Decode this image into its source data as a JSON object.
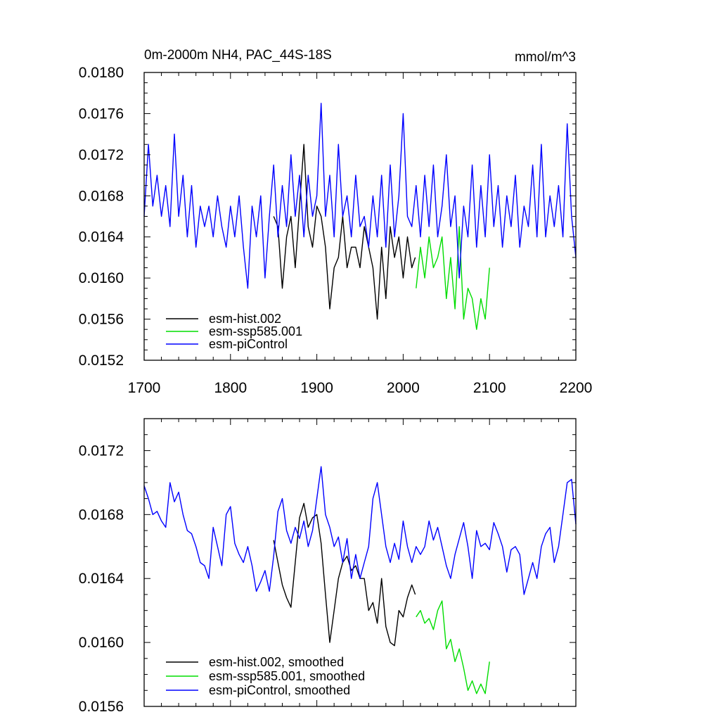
{
  "chart_data": [
    {
      "type": "line",
      "title": "0m-2000m NH4, PAC_44S-18S",
      "units": "mmol/m^3",
      "xlim": [
        1700,
        2200
      ],
      "ylim": [
        0.0152,
        0.018
      ],
      "xticks": [
        "1700",
        "1800",
        "1900",
        "2000",
        "2100",
        "2200"
      ],
      "yticks": [
        "0.0152",
        "0.0156",
        "0.0160",
        "0.0164",
        "0.0168",
        "0.0172",
        "0.0176",
        "0.0180"
      ],
      "legend_position": "bottom-left",
      "series": [
        {
          "name": "esm-hist.002",
          "color": "#000000",
          "x": [
            1850,
            1855,
            1860,
            1865,
            1870,
            1875,
            1880,
            1885,
            1890,
            1895,
            1900,
            1905,
            1910,
            1915,
            1920,
            1925,
            1930,
            1935,
            1940,
            1945,
            1950,
            1955,
            1960,
            1965,
            1970,
            1975,
            1980,
            1985,
            1990,
            1995,
            2000,
            2005,
            2010,
            2014
          ],
          "y": [
            0.0166,
            0.0165,
            0.0159,
            0.0164,
            0.0166,
            0.0161,
            0.0167,
            0.0173,
            0.0165,
            0.0163,
            0.0167,
            0.0166,
            0.0163,
            0.0157,
            0.0161,
            0.0162,
            0.0166,
            0.0161,
            0.0163,
            0.0163,
            0.0161,
            0.0165,
            0.0163,
            0.0161,
            0.0156,
            0.0163,
            0.0158,
            0.0165,
            0.0162,
            0.0164,
            0.016,
            0.0164,
            0.0161,
            0.0162
          ]
        },
        {
          "name": "esm-ssp585.001",
          "color": "#00dd00",
          "x": [
            2015,
            2020,
            2025,
            2030,
            2035,
            2040,
            2045,
            2050,
            2055,
            2060,
            2065,
            2070,
            2075,
            2080,
            2085,
            2090,
            2095,
            2100
          ],
          "y": [
            0.0159,
            0.0163,
            0.016,
            0.0164,
            0.0161,
            0.0162,
            0.0164,
            0.0158,
            0.0162,
            0.0157,
            0.0165,
            0.0156,
            0.0159,
            0.0158,
            0.0155,
            0.0158,
            0.0156,
            0.0161
          ]
        },
        {
          "name": "esm-piControl",
          "color": "#0000ff",
          "x": [
            1700,
            1705,
            1710,
            1715,
            1720,
            1725,
            1730,
            1735,
            1740,
            1745,
            1750,
            1755,
            1760,
            1765,
            1770,
            1775,
            1780,
            1785,
            1790,
            1795,
            1800,
            1805,
            1810,
            1815,
            1820,
            1825,
            1830,
            1835,
            1840,
            1845,
            1850,
            1855,
            1860,
            1865,
            1870,
            1875,
            1880,
            1885,
            1890,
            1895,
            1900,
            1905,
            1910,
            1915,
            1920,
            1925,
            1930,
            1935,
            1940,
            1945,
            1950,
            1955,
            1960,
            1965,
            1970,
            1975,
            1980,
            1985,
            1990,
            1995,
            2000,
            2005,
            2010,
            2015,
            2020,
            2025,
            2030,
            2035,
            2040,
            2045,
            2050,
            2055,
            2060,
            2065,
            2070,
            2075,
            2080,
            2085,
            2090,
            2095,
            2100,
            2105,
            2110,
            2115,
            2120,
            2125,
            2130,
            2135,
            2140,
            2145,
            2150,
            2155,
            2160,
            2165,
            2170,
            2175,
            2180,
            2185,
            2190,
            2195,
            2200
          ],
          "y": [
            0.0166,
            0.0173,
            0.0167,
            0.017,
            0.0166,
            0.0169,
            0.0165,
            0.0174,
            0.0166,
            0.017,
            0.0164,
            0.0169,
            0.0163,
            0.0167,
            0.0165,
            0.0167,
            0.0164,
            0.0168,
            0.0165,
            0.0163,
            0.0167,
            0.0164,
            0.0168,
            0.0163,
            0.0159,
            0.0167,
            0.0164,
            0.0168,
            0.016,
            0.0166,
            0.0171,
            0.0164,
            0.0169,
            0.0165,
            0.0172,
            0.0166,
            0.017,
            0.0164,
            0.017,
            0.0166,
            0.0168,
            0.0177,
            0.0166,
            0.017,
            0.0164,
            0.0173,
            0.0166,
            0.0168,
            0.0164,
            0.017,
            0.0165,
            0.0166,
            0.0163,
            0.0168,
            0.0164,
            0.017,
            0.0163,
            0.0171,
            0.0164,
            0.0168,
            0.0176,
            0.0166,
            0.0165,
            0.0169,
            0.0164,
            0.017,
            0.0165,
            0.0171,
            0.0164,
            0.0167,
            0.0172,
            0.0165,
            0.0168,
            0.016,
            0.0167,
            0.0164,
            0.0171,
            0.0163,
            0.0169,
            0.0164,
            0.0172,
            0.0165,
            0.0169,
            0.0163,
            0.0168,
            0.0165,
            0.017,
            0.0163,
            0.0167,
            0.0165,
            0.0171,
            0.0164,
            0.0173,
            0.0164,
            0.0168,
            0.0165,
            0.0169,
            0.0164,
            0.0175,
            0.0166,
            0.0162
          ]
        }
      ]
    },
    {
      "type": "line",
      "xlim": [
        1700,
        2200
      ],
      "ylim": [
        0.0156,
        0.0174
      ],
      "yticks": [
        "0.0156",
        "0.0160",
        "0.0164",
        "0.0168",
        "0.0172"
      ],
      "legend_position": "bottom-left",
      "series": [
        {
          "name": "esm-hist.002, smoothed",
          "color": "#000000",
          "x": [
            1850,
            1855,
            1860,
            1865,
            1870,
            1875,
            1880,
            1885,
            1890,
            1895,
            1900,
            1905,
            1910,
            1915,
            1920,
            1925,
            1930,
            1935,
            1940,
            1945,
            1950,
            1955,
            1960,
            1965,
            1970,
            1975,
            1980,
            1985,
            1990,
            1995,
            2000,
            2005,
            2010,
            2014
          ],
          "y": [
            0.01664,
            0.0165,
            0.01636,
            0.01628,
            0.01622,
            0.0165,
            0.01678,
            0.01687,
            0.01672,
            0.01678,
            0.0168,
            0.01662,
            0.0163,
            0.016,
            0.0162,
            0.0164,
            0.0165,
            0.01654,
            0.01645,
            0.01648,
            0.0164,
            0.0164,
            0.0162,
            0.01625,
            0.01612,
            0.0164,
            0.0161,
            0.016,
            0.01598,
            0.0162,
            0.01616,
            0.01628,
            0.01636,
            0.0163
          ]
        },
        {
          "name": "esm-ssp585.001, smoothed",
          "color": "#00dd00",
          "x": [
            2015,
            2020,
            2025,
            2030,
            2035,
            2040,
            2045,
            2050,
            2055,
            2060,
            2065,
            2070,
            2075,
            2080,
            2085,
            2090,
            2095,
            2100
          ],
          "y": [
            0.01616,
            0.0162,
            0.01612,
            0.01615,
            0.01608,
            0.0162,
            0.01626,
            0.01596,
            0.01602,
            0.01588,
            0.01596,
            0.01584,
            0.0157,
            0.01576,
            0.01568,
            0.01574,
            0.01568,
            0.01588
          ]
        },
        {
          "name": "esm-piControl, smoothed",
          "color": "#0000ff",
          "x": [
            1700,
            1705,
            1710,
            1715,
            1720,
            1725,
            1730,
            1735,
            1740,
            1745,
            1750,
            1755,
            1760,
            1765,
            1770,
            1775,
            1780,
            1785,
            1790,
            1795,
            1800,
            1805,
            1810,
            1815,
            1820,
            1825,
            1830,
            1835,
            1840,
            1845,
            1850,
            1855,
            1860,
            1865,
            1870,
            1875,
            1880,
            1885,
            1890,
            1895,
            1900,
            1905,
            1910,
            1915,
            1920,
            1925,
            1930,
            1935,
            1940,
            1945,
            1950,
            1955,
            1960,
            1965,
            1970,
            1975,
            1980,
            1985,
            1990,
            1995,
            2000,
            2005,
            2010,
            2015,
            2020,
            2025,
            2030,
            2035,
            2040,
            2045,
            2050,
            2055,
            2060,
            2065,
            2070,
            2075,
            2080,
            2085,
            2090,
            2095,
            2100,
            2105,
            2110,
            2115,
            2120,
            2125,
            2130,
            2135,
            2140,
            2145,
            2150,
            2155,
            2160,
            2165,
            2170,
            2175,
            2180,
            2185,
            2190,
            2195,
            2200
          ],
          "y": [
            0.01698,
            0.0169,
            0.0168,
            0.01682,
            0.01676,
            0.01672,
            0.017,
            0.01688,
            0.01694,
            0.0168,
            0.0167,
            0.01668,
            0.0166,
            0.0165,
            0.01648,
            0.0164,
            0.01672,
            0.0166,
            0.01648,
            0.0168,
            0.01685,
            0.01662,
            0.01655,
            0.0165,
            0.0166,
            0.01648,
            0.01632,
            0.01638,
            0.01645,
            0.01632,
            0.01654,
            0.01682,
            0.0169,
            0.0167,
            0.01662,
            0.01672,
            0.01665,
            0.01676,
            0.0166,
            0.0167,
            0.0169,
            0.0171,
            0.0168,
            0.01672,
            0.0166,
            0.01666,
            0.0165,
            0.01665,
            0.0164,
            0.01655,
            0.0164,
            0.0165,
            0.0166,
            0.0169,
            0.017,
            0.0168,
            0.0166,
            0.0165,
            0.01662,
            0.01652,
            0.01676,
            0.0166,
            0.0165,
            0.0166,
            0.01655,
            0.0166,
            0.01676,
            0.01664,
            0.01672,
            0.0166,
            0.01648,
            0.0164,
            0.01655,
            0.01665,
            0.01675,
            0.0166,
            0.0164,
            0.0167,
            0.0166,
            0.01662,
            0.01658,
            0.01675,
            0.01668,
            0.0166,
            0.01644,
            0.01658,
            0.0166,
            0.01655,
            0.0163,
            0.0164,
            0.0165,
            0.0164,
            0.0166,
            0.01668,
            0.01672,
            0.0165,
            0.0166,
            0.0168,
            0.017,
            0.01702,
            0.01674
          ]
        }
      ]
    }
  ]
}
